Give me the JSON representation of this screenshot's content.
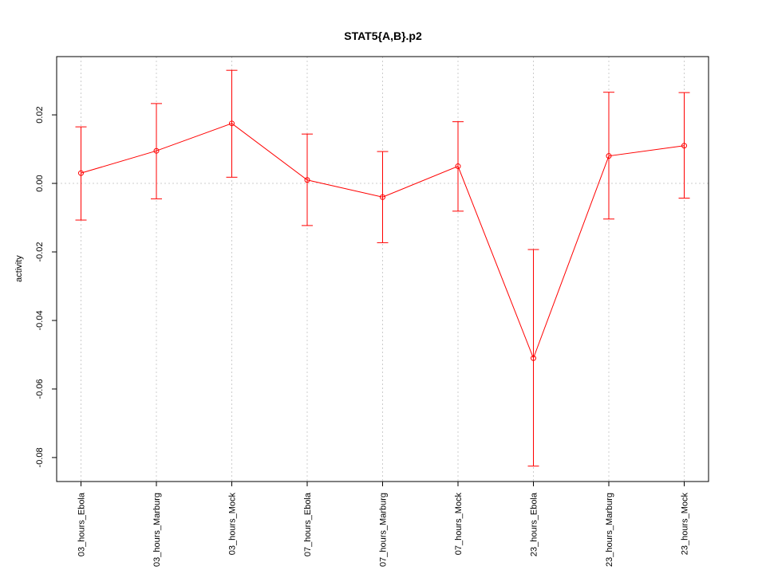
{
  "chart_data": {
    "type": "line",
    "title": "STAT5{A,B}.p2",
    "xlabel": "",
    "ylabel": "activity",
    "categories": [
      "03_hours_Ebola",
      "03_hours_Marburg",
      "03_hours_Mock",
      "07_hours_Ebola",
      "07_hours_Marburg",
      "07_hours_Mock",
      "23_hours_Ebola",
      "23_hours_Marburg",
      "23_hours_Mock"
    ],
    "series": [
      {
        "values": [
          0.003,
          0.0095,
          0.0175,
          0.001,
          -0.004,
          0.005,
          -0.051,
          0.008,
          0.011
        ],
        "upper": [
          0.0165,
          0.0233,
          0.033,
          0.0144,
          0.0093,
          0.018,
          -0.0193,
          0.0266,
          0.0265
        ],
        "lower": [
          -0.0107,
          -0.0045,
          0.0018,
          -0.0123,
          -0.0173,
          -0.0081,
          -0.0825,
          -0.0104,
          -0.0043
        ],
        "color": "#ff0000"
      }
    ],
    "ylim": [
      -0.087,
      0.037
    ],
    "yticks": [
      -0.08,
      -0.06,
      -0.04,
      -0.02,
      0.0,
      0.02
    ],
    "ytick_labels": [
      "-0.08",
      "-0.06",
      "-0.04",
      "-0.02",
      "0.00",
      "0.02"
    ],
    "grid": true,
    "reference_line": 0
  }
}
